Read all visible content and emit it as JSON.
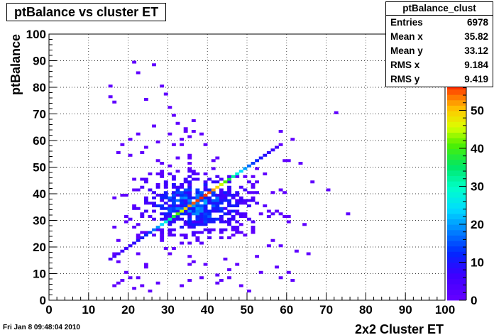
{
  "title": "ptBalance vs cluster ET",
  "stats": {
    "name": "ptBalance_clust",
    "rows": [
      {
        "label": "Entries",
        "value": "6978"
      },
      {
        "label": "Mean x",
        "value": "35.82"
      },
      {
        "label": "Mean y",
        "value": "33.12"
      },
      {
        "label": "RMS x",
        "value": "9.184"
      },
      {
        "label": "RMS y",
        "value": "9.419"
      }
    ]
  },
  "timestamp": "Fri Jan  8 09:48:04 2010",
  "chart_data": {
    "type": "heatmap",
    "title": "ptBalance vs cluster ET",
    "xlabel": "2x2 Cluster ET",
    "ylabel": "ptBalance",
    "xlim": [
      0,
      100
    ],
    "ylim": [
      0,
      100
    ],
    "x_ticks": [
      0,
      10,
      20,
      30,
      40,
      50,
      60,
      70,
      80,
      90,
      100
    ],
    "y_ticks": [
      0,
      10,
      20,
      30,
      40,
      50,
      60,
      70,
      80,
      90,
      100
    ],
    "z_range": [
      0,
      57
    ],
    "z_ticks": [
      0,
      10,
      20,
      30,
      40,
      50
    ],
    "grid": true,
    "bin_width": 1,
    "entries": 6978,
    "mean_x": 35.82,
    "mean_y": 33.12,
    "rms_x": 9.184,
    "rms_y": 9.419,
    "diagonal": {
      "x_start": 15,
      "x_end": 58,
      "slope": 1,
      "peak_z": 57
    },
    "cloud": {
      "cx": 37,
      "cy": 36,
      "sx": 9,
      "sy": 7,
      "x_range": [
        15,
        62
      ],
      "y_range": [
        5,
        56
      ],
      "peak_z": 22
    },
    "outliers": [
      [
        15,
        80
      ],
      [
        15,
        76
      ],
      [
        16,
        74
      ],
      [
        24,
        75
      ],
      [
        28,
        80
      ],
      [
        29,
        77
      ],
      [
        30,
        72
      ],
      [
        31,
        69
      ],
      [
        32,
        66
      ],
      [
        33,
        58
      ],
      [
        34,
        64
      ],
      [
        36,
        67
      ],
      [
        38,
        62
      ],
      [
        39,
        58
      ],
      [
        21,
        89
      ],
      [
        26,
        88
      ],
      [
        34,
        63
      ],
      [
        35,
        61
      ],
      [
        36,
        63
      ],
      [
        58,
        63
      ],
      [
        58,
        58
      ],
      [
        61,
        60
      ],
      [
        72,
        70
      ],
      [
        70,
        41
      ],
      [
        75,
        32
      ],
      [
        66,
        44
      ],
      [
        63,
        51
      ],
      [
        60,
        52
      ],
      [
        64,
        28
      ],
      [
        62,
        18
      ],
      [
        65,
        17
      ],
      [
        57,
        12
      ],
      [
        60,
        10
      ],
      [
        61,
        7
      ],
      [
        58,
        8
      ],
      [
        50,
        3
      ],
      [
        48,
        5
      ],
      [
        45,
        8
      ],
      [
        42,
        9
      ],
      [
        38,
        8
      ],
      [
        35,
        7
      ],
      [
        52,
        16
      ],
      [
        56,
        22
      ],
      [
        16,
        5
      ],
      [
        17,
        6
      ],
      [
        18,
        7
      ],
      [
        19,
        10
      ],
      [
        20,
        8
      ],
      [
        21,
        4
      ],
      [
        23,
        5
      ],
      [
        25,
        3
      ],
      [
        27,
        6
      ],
      [
        22,
        85
      ],
      [
        30,
        62
      ],
      [
        26,
        65
      ],
      [
        22,
        62
      ],
      [
        20,
        60
      ],
      [
        18,
        58
      ],
      [
        17,
        55
      ],
      [
        24,
        57
      ],
      [
        27,
        59
      ],
      [
        31,
        58
      ],
      [
        33,
        60
      ]
    ]
  }
}
